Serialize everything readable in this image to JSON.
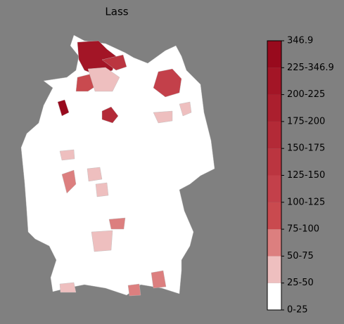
{
  "title": "Lass",
  "colorbar": {
    "labels": [
      "0-25",
      "25-50",
      "50-75",
      "75-100",
      "100-125",
      "125-150",
      "150-175",
      "175-200",
      "200-225",
      "225-346.9",
      "346.9"
    ],
    "colors": [
      "#ffffff",
      "#eebfbf",
      "#dc7f7f",
      "#c94a4f",
      "#c3404a",
      "#bb3540",
      "#b32a37",
      "#ab1f2e",
      "#a31526",
      "#980a1d"
    ]
  }
}
